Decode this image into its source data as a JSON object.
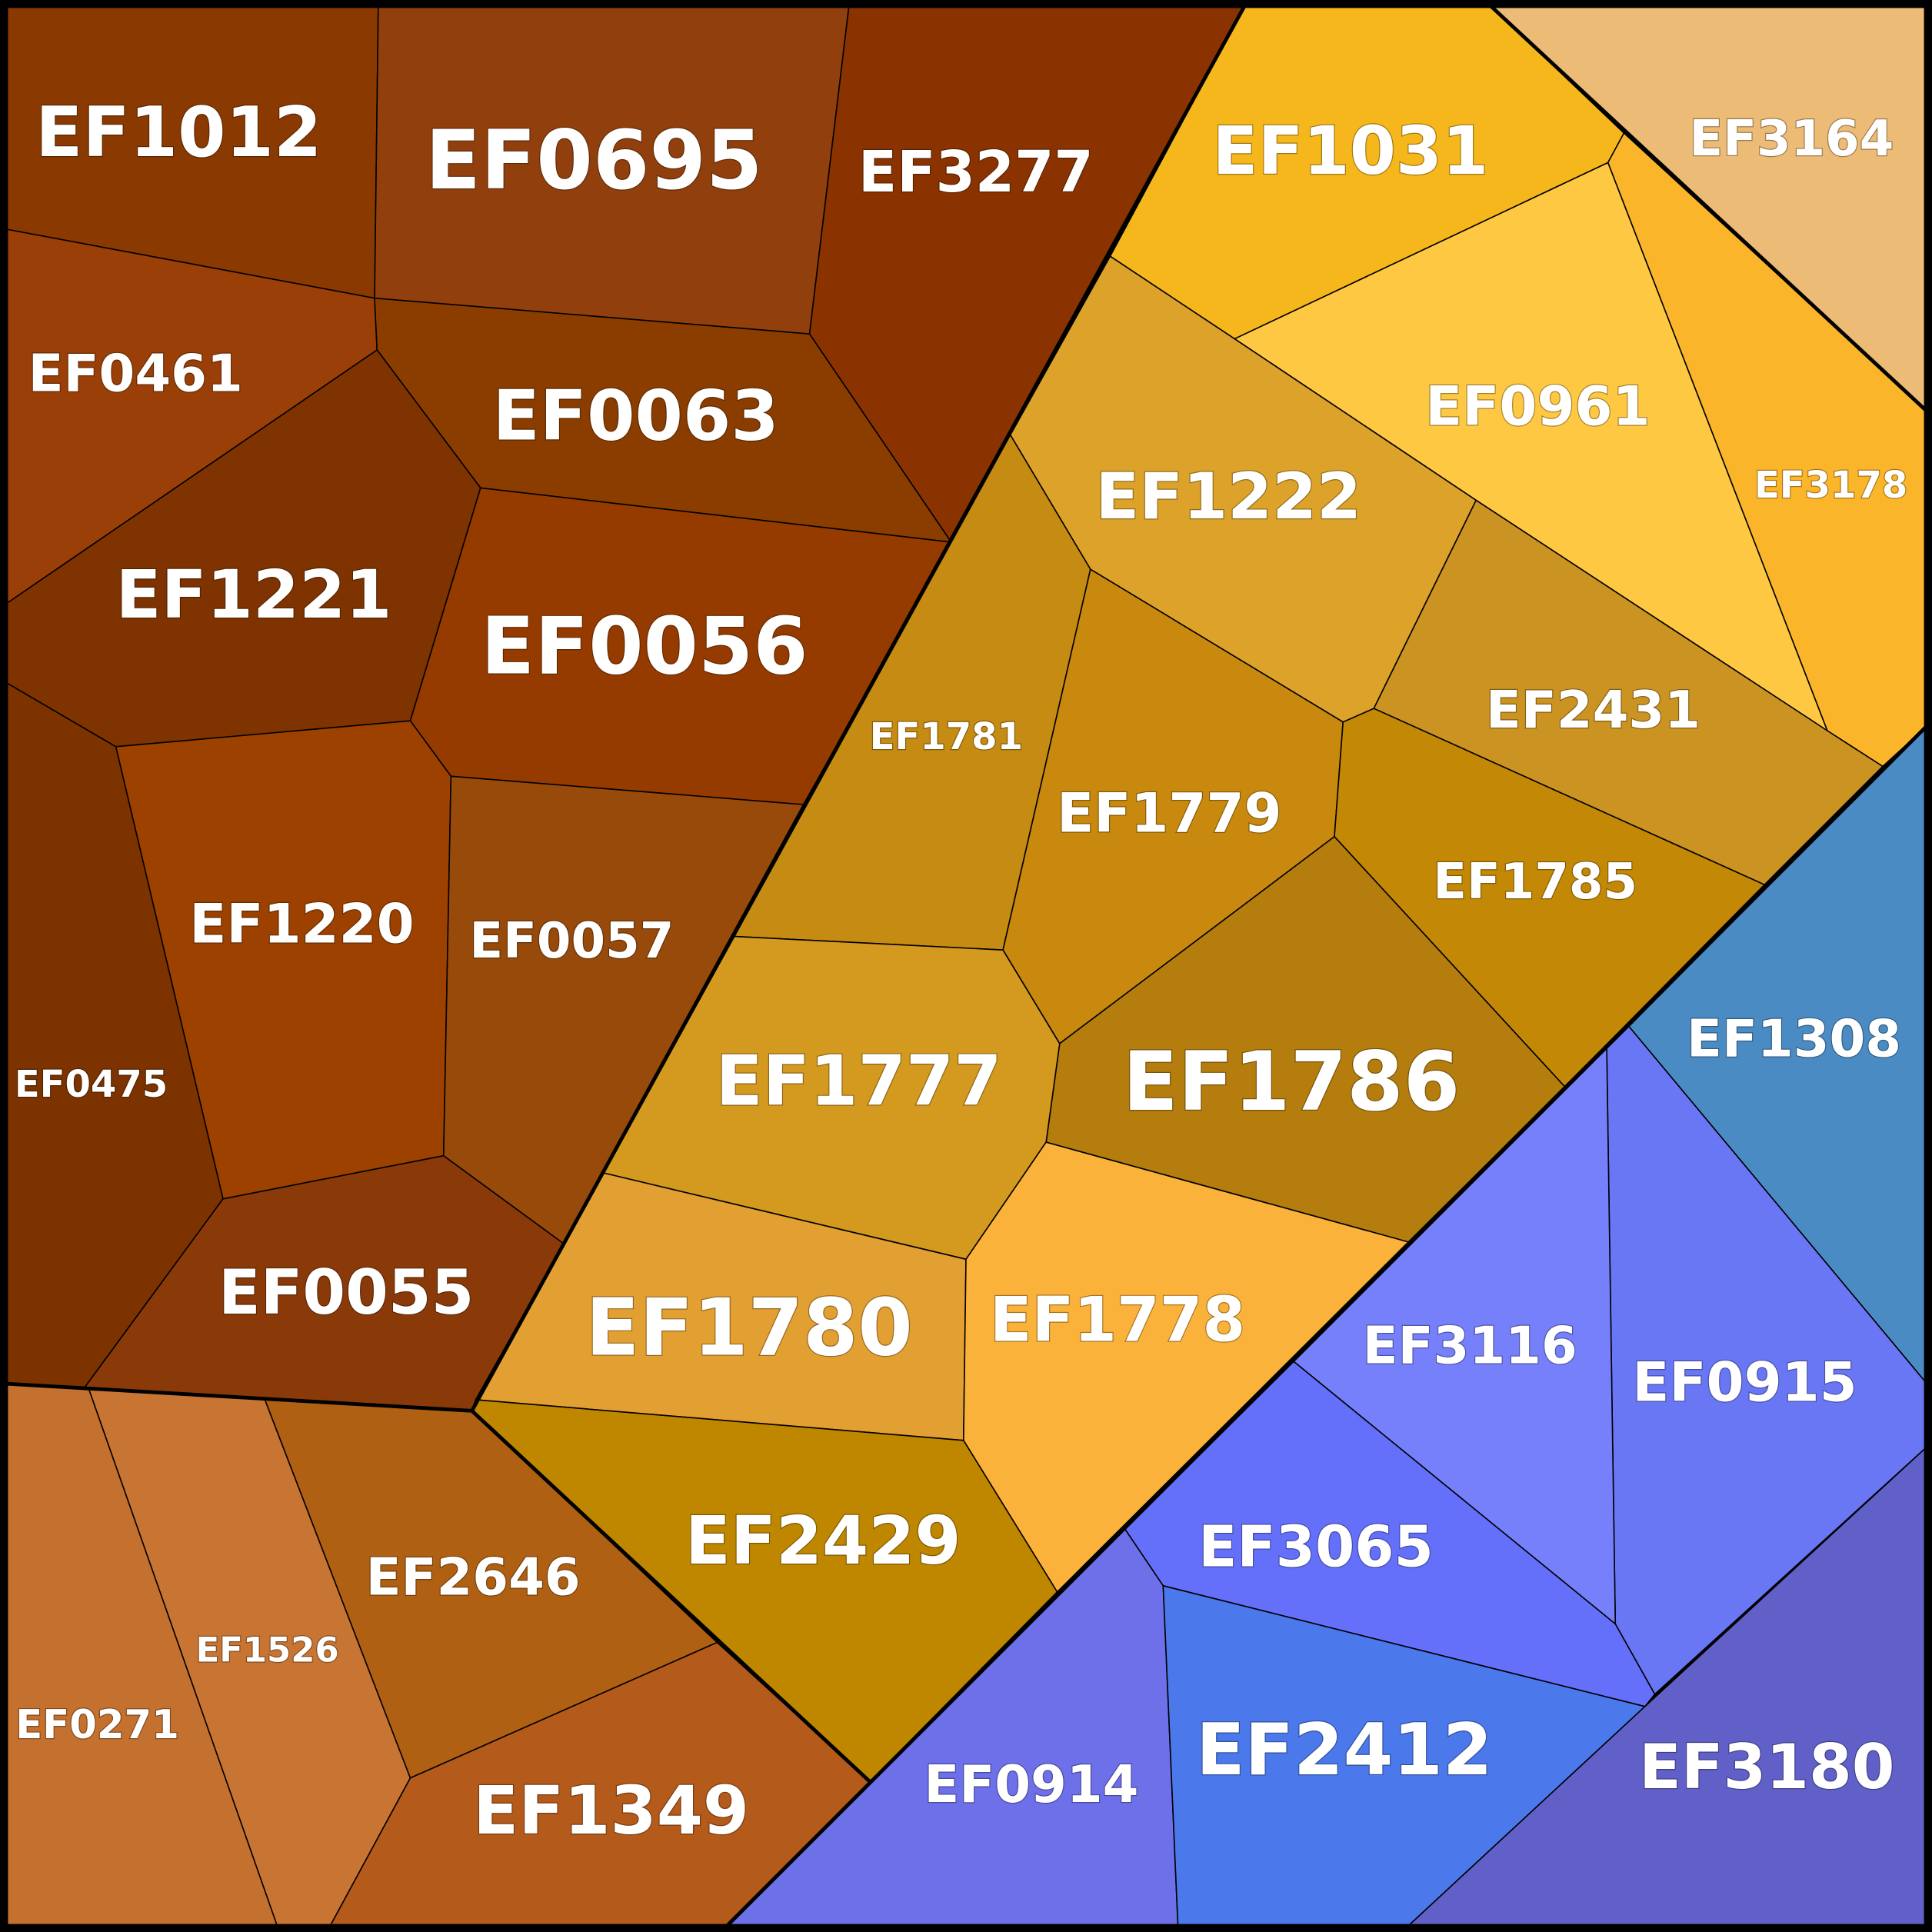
{
  "cells": [
    {
      "label": "EF1012",
      "color": "#8a3a00"
    },
    {
      "label": "EF0695",
      "color": "#91400d"
    },
    {
      "label": "EF3277",
      "color": "#8a3300"
    },
    {
      "label": "EF0461",
      "color": "#9a3f07"
    },
    {
      "label": "EF0063",
      "color": "#8b3d00"
    },
    {
      "label": "EF1221",
      "color": "#7f3300"
    },
    {
      "label": "EF0056",
      "color": "#963b00"
    },
    {
      "label": "EF1220",
      "color": "#9c4100"
    },
    {
      "label": "EF0057",
      "color": "#984a0b"
    },
    {
      "label": "EF0475",
      "color": "#7c3300"
    },
    {
      "label": "EF0055",
      "color": "#8a3a08"
    },
    {
      "label": "EF0271",
      "color": "#c4702f"
    },
    {
      "label": "EF1526",
      "color": "#c87533"
    },
    {
      "label": "EF2646",
      "color": "#b06012"
    },
    {
      "label": "EF1349",
      "color": "#b45a1a"
    },
    {
      "label": "EF3164",
      "color": "#ecbb75"
    },
    {
      "label": "EF1031",
      "color": "#f5b71b"
    },
    {
      "label": "EF3178",
      "color": "#fbb52a"
    },
    {
      "label": "EF0961",
      "color": "#fec843"
    },
    {
      "label": "EF1222",
      "color": "#dca229"
    },
    {
      "label": "EF2431",
      "color": "#cb9322"
    },
    {
      "label": "EF1781",
      "color": "#c58b12"
    },
    {
      "label": "EF1779",
      "color": "#c8890e"
    },
    {
      "label": "EF1785",
      "color": "#c38805"
    },
    {
      "label": "EF1786",
      "color": "#b47d0e"
    },
    {
      "label": "EF1777",
      "color": "#d4991f"
    },
    {
      "label": "EF1780",
      "color": "#e29f32"
    },
    {
      "label": "EF1778",
      "color": "#fbb23a"
    },
    {
      "label": "EF2429",
      "color": "#bf8600"
    },
    {
      "label": "EF1308",
      "color": "#4a8bc4"
    },
    {
      "label": "EF0915",
      "color": "#6a77f5"
    },
    {
      "label": "EF3116",
      "color": "#7580fa"
    },
    {
      "label": "EF3065",
      "color": "#6470fa"
    },
    {
      "label": "EF0914",
      "color": "#6e70ea"
    },
    {
      "label": "EF2412",
      "color": "#4b78ea"
    },
    {
      "label": "EF3180",
      "color": "#6060c8"
    }
  ]
}
